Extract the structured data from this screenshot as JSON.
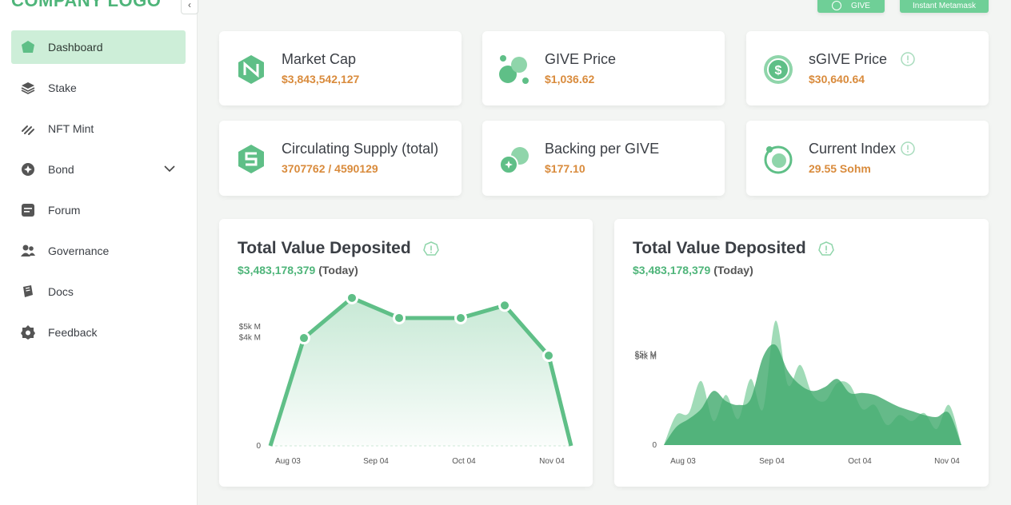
{
  "brand": {
    "logo_text": "COMPANY LOGO",
    "accent": "#4fb57a",
    "value_color": "#d98b3c"
  },
  "header": {
    "give_label": "GIVE",
    "metamask_label": "Instant Metamask"
  },
  "sidebar": {
    "items": [
      {
        "label": "Dashboard",
        "icon": "dashboard-icon",
        "active": true
      },
      {
        "label": "Stake",
        "icon": "stack-icon"
      },
      {
        "label": "NFT Mint",
        "icon": "nft-icon"
      },
      {
        "label": "Bond",
        "icon": "bond-icon",
        "has_dropdown": true
      },
      {
        "label": "Forum",
        "icon": "forum-icon"
      },
      {
        "label": "Governance",
        "icon": "users-icon"
      },
      {
        "label": "Docs",
        "icon": "docs-icon"
      },
      {
        "label": "Feedback",
        "icon": "feedback-icon"
      }
    ]
  },
  "stats": [
    {
      "title": "Market Cap",
      "value": "$3,843,542,127",
      "icon": "market-cap-icon"
    },
    {
      "title": "GIVE Price",
      "value": "$1,036.62",
      "icon": "give-price-icon"
    },
    {
      "title": "sGIVE Price",
      "value": "$30,640.64",
      "icon": "dollar-coin-icon",
      "info": true
    },
    {
      "title": "Circulating Supply (total)",
      "value": "3707762 / 4590129",
      "icon": "supply-icon"
    },
    {
      "title": "Backing per GIVE",
      "value": "$177.10",
      "icon": "backing-icon"
    },
    {
      "title": "Current Index",
      "value": "29.55 Sohm",
      "icon": "index-icon",
      "info": true
    }
  ],
  "charts": [
    {
      "title": "Total Value Deposited",
      "amount": "$3,483,178,379",
      "suffix": " (Today)"
    },
    {
      "title": "Total Value Deposited",
      "amount": "$3,483,178,379",
      "suffix": " (Today)"
    }
  ],
  "chart_data": [
    {
      "type": "line",
      "title": "Total Value Deposited",
      "x_ticks": [
        "Aug 03",
        "Sep 04",
        "Oct 04",
        "Nov 04"
      ],
      "y_ticks": [
        "$5k M",
        "$4k M",
        "0"
      ],
      "x": [
        "Aug 03",
        "Aug 19",
        "Aug 31",
        "Sep 15",
        "Oct 01",
        "Oct 15",
        "Oct 29",
        "Nov 11"
      ],
      "values": [
        0,
        4300,
        5900,
        5100,
        5100,
        5600,
        3600,
        0
      ],
      "ylim": [
        0,
        6500
      ],
      "color": "#5fbf87"
    },
    {
      "type": "area",
      "title": "Total Value Deposited",
      "x_ticks": [
        "Aug 03",
        "Sep 04",
        "Oct 04",
        "Nov 04"
      ],
      "y_ticks": [
        "$5k M",
        "$4k M",
        "0"
      ],
      "series": [
        {
          "values": [
            0,
            1500,
            1600,
            3200,
            1200,
            2500,
            1300,
            3300,
            1800,
            6200,
            3000,
            4000,
            2500,
            2200,
            3100,
            3000,
            1800,
            2000,
            1000,
            1500,
            1200,
            1600,
            800,
            2000,
            0
          ],
          "color": "#8fd5aa"
        },
        {
          "values": [
            0,
            900,
            1300,
            1800,
            2700,
            2200,
            2000,
            2300,
            4400,
            5000,
            3700,
            3000,
            2700,
            2900,
            3300,
            2600,
            2600,
            2500,
            2200,
            1900,
            1700,
            1500,
            1400,
            1600,
            0
          ],
          "color": "#3fa96b"
        }
      ],
      "ylim": [
        0,
        6500
      ]
    }
  ]
}
